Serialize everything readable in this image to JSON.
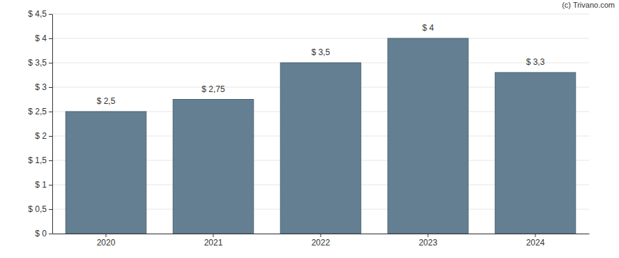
{
  "chart_data": {
    "type": "bar",
    "annotations": [
      "(c) Trivano.com"
    ],
    "categories": [
      "2020",
      "2021",
      "2022",
      "2023",
      "2024"
    ],
    "values": [
      2.5,
      2.75,
      3.5,
      4,
      3.3
    ],
    "value_labels": [
      "$ 2,5",
      "$ 2,75",
      "$ 3,5",
      "$ 4",
      "$ 3,3"
    ],
    "data_labels": true,
    "color": "#647f91",
    "ylim": [
      0,
      4.5
    ],
    "yticks": [
      {
        "value": 0,
        "label": "$ 0"
      },
      {
        "value": 0.5,
        "label": "$ 0,5"
      },
      {
        "value": 1,
        "label": "$ 1"
      },
      {
        "value": 1.5,
        "label": "$ 1,5"
      },
      {
        "value": 2,
        "label": "$ 2"
      },
      {
        "value": 2.5,
        "label": "$ 2,5"
      },
      {
        "value": 3,
        "label": "$ 3"
      },
      {
        "value": 3.5,
        "label": "$ 3,5"
      },
      {
        "value": 4,
        "label": "$ 4"
      },
      {
        "value": 4.5,
        "label": "$ 4,5"
      }
    ],
    "grid": true
  }
}
